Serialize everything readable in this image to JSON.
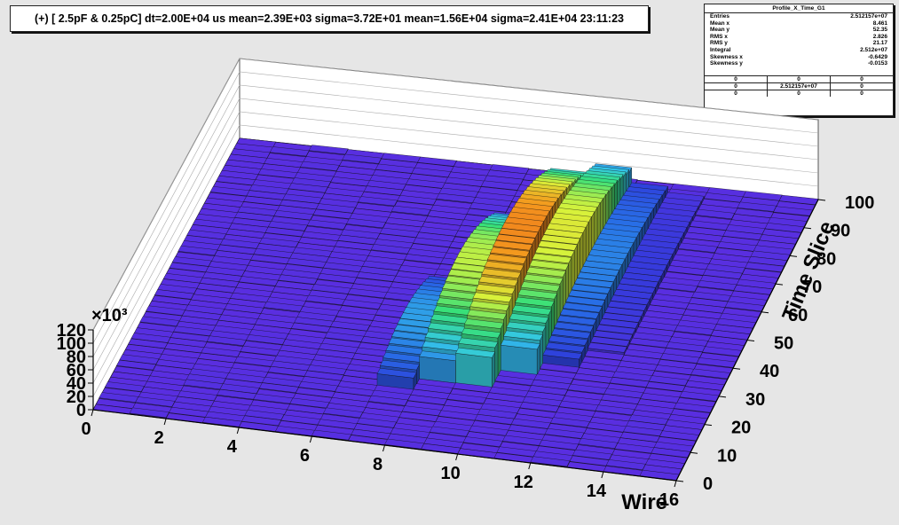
{
  "title": "(+) [ 2.5pF & 0.25pC] dt=2.00E+04 us mean=2.39E+03 sigma=3.72E+01 mean=1.56E+04 sigma=2.41E+04  23:11:23",
  "stats": {
    "name": "Profile_X_Time_G1",
    "rows": [
      {
        "label": "Entries",
        "value": "2.512157e+07"
      },
      {
        "label": "Mean x",
        "value": "8.461"
      },
      {
        "label": "Mean y",
        "value": "52.35"
      },
      {
        "label": "RMS x",
        "value": "2.826"
      },
      {
        "label": "RMS y",
        "value": "21.17"
      },
      {
        "label": "Integral",
        "value": "2.512e+07"
      },
      {
        "label": "Skewness x",
        "value": "-0.6429"
      },
      {
        "label": "Skewness y",
        "value": "-0.0153"
      }
    ],
    "grid": [
      [
        "0",
        "0",
        "0"
      ],
      [
        "0",
        "2.512157e+07",
        "0"
      ],
      [
        "0",
        "0",
        "0"
      ]
    ]
  },
  "chart_data": {
    "type": "lego",
    "xlabel": "Wire",
    "ylabel": "Time Slice",
    "z_multiplier": "×10³",
    "xlim": [
      0,
      16
    ],
    "ylim": [
      0,
      100
    ],
    "zlim": [
      0,
      120
    ],
    "x_ticks": [
      "0",
      "2",
      "4",
      "6",
      "8",
      "10",
      "12",
      "14",
      "16"
    ],
    "y_ticks": [
      "0",
      "10",
      "20",
      "30",
      "40",
      "50",
      "60",
      "70",
      "80",
      "90",
      "100"
    ],
    "z_ticks": [
      "0",
      "20",
      "40",
      "60",
      "80",
      "100",
      "120"
    ],
    "peak_profile": [
      {
        "wire_range": [
          7,
          8
        ],
        "time_range": [
          20,
          55
        ],
        "peak": 35
      },
      {
        "wire_range": [
          8,
          9
        ],
        "time_range": [
          25,
          75
        ],
        "peak": 75
      },
      {
        "wire_range": [
          9,
          10
        ],
        "time_range": [
          25,
          90
        ],
        "peak": 100
      },
      {
        "wire_range": [
          10,
          11
        ],
        "time_range": [
          30,
          95
        ],
        "peak": 80
      },
      {
        "wire_range": [
          11,
          12
        ],
        "time_range": [
          35,
          95
        ],
        "peak": 30
      },
      {
        "wire_range": [
          12,
          13
        ],
        "time_range": [
          40,
          95
        ],
        "peak": 10
      }
    ],
    "colors": {
      "background": "#e6e6e6",
      "floor_low": "#5a2ee0",
      "low": "#2f3ddb",
      "mid_low": "#34c7e8",
      "mid": "#37e07a",
      "mid_high": "#d8f23a",
      "high": "#f39a1e",
      "peak": "#e8321a"
    }
  }
}
